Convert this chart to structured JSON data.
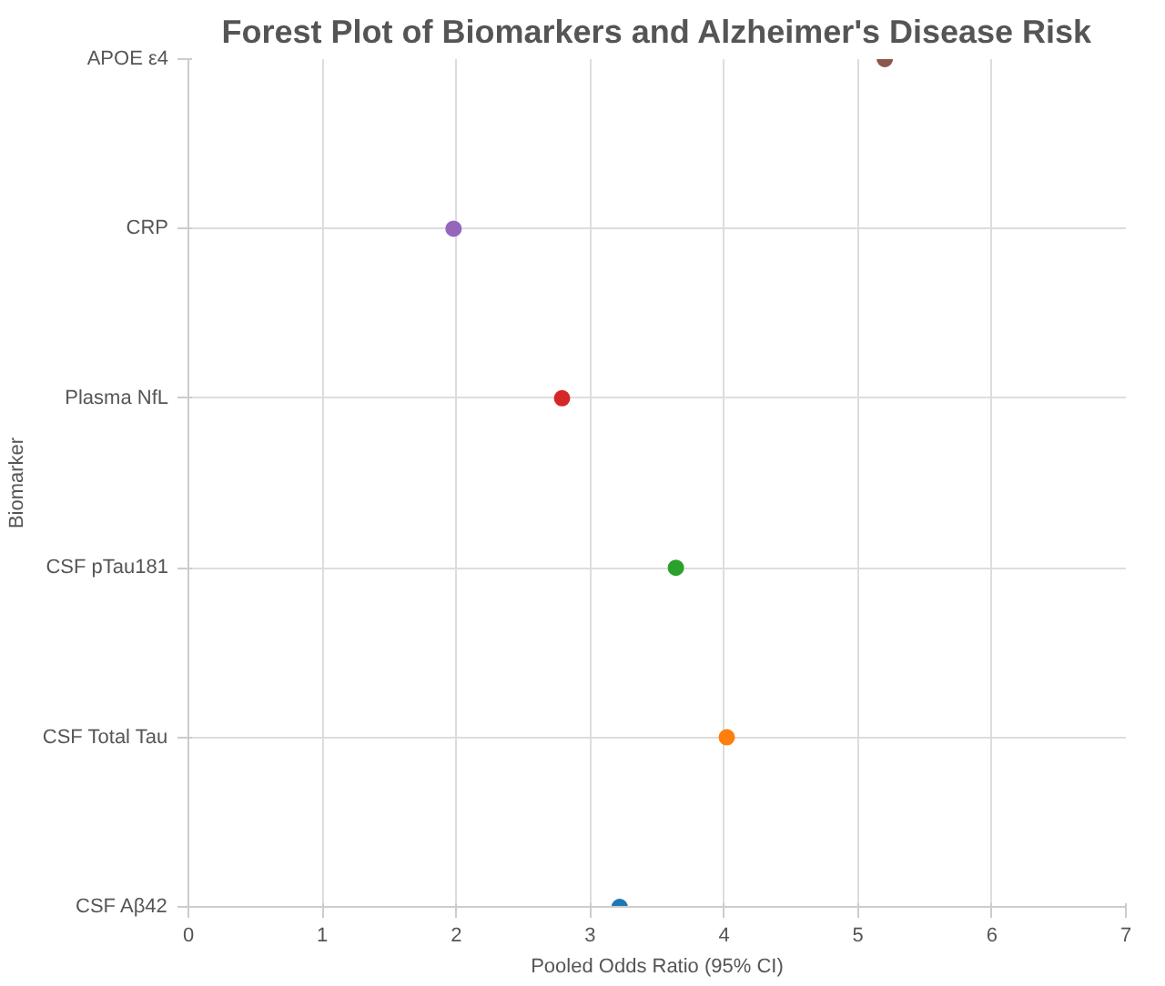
{
  "chart_data": {
    "type": "scatter",
    "title": "Forest Plot of Biomarkers and Alzheimer's Disease Risk",
    "xlabel": "Pooled Odds Ratio (95% CI)",
    "ylabel": "Biomarker",
    "categories": [
      "APOE ε4",
      "CRP",
      "Plasma NfL",
      "CSF pTau181",
      "CSF Total Tau",
      "CSF Aβ42"
    ],
    "orientation": "horizontal",
    "values": [
      5.2,
      1.98,
      2.79,
      3.64,
      4.02,
      3.22
    ],
    "colors": [
      "#8c564b",
      "#9467bd",
      "#d62728",
      "#2ca02c",
      "#ff7f0e",
      "#1f77b4"
    ],
    "xlim": [
      0,
      7
    ],
    "xticks": [
      0,
      1,
      2,
      3,
      4,
      5,
      6,
      7
    ],
    "grid": true,
    "marker": "circle"
  }
}
